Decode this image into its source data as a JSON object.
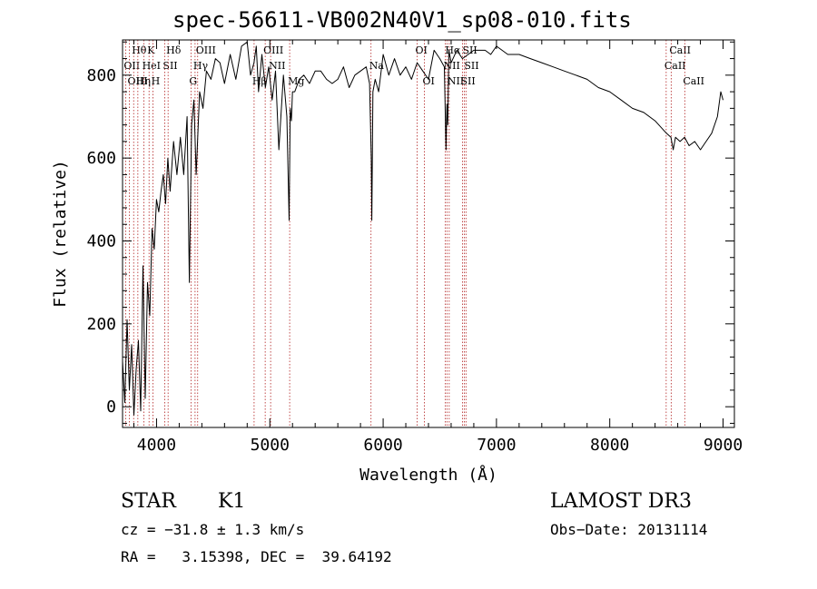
{
  "chart_data": {
    "type": "line",
    "title": "spec-56611-VB002N40V1_sp08-010.fits",
    "xlabel": "Wavelength (Å)",
    "ylabel": "Flux (relative)",
    "xlim": [
      3700,
      9100
    ],
    "ylim": [
      -50,
      885
    ],
    "xticks": [
      "4000",
      "5000",
      "6000",
      "7000",
      "8000",
      "9000"
    ],
    "xtick_values": [
      4000,
      5000,
      6000,
      7000,
      8000,
      9000
    ],
    "yticks": [
      "0",
      "200",
      "400",
      "600",
      "800"
    ],
    "ytick_values": [
      0,
      200,
      400,
      600,
      800
    ],
    "series": [
      {
        "name": "flux",
        "x": [
          3700,
          3720,
          3740,
          3760,
          3780,
          3800,
          3820,
          3840,
          3860,
          3880,
          3900,
          3920,
          3940,
          3960,
          3980,
          4000,
          4020,
          4040,
          4060,
          4080,
          4100,
          4120,
          4150,
          4180,
          4210,
          4240,
          4270,
          4290,
          4310,
          4330,
          4350,
          4380,
          4410,
          4440,
          4480,
          4520,
          4560,
          4600,
          4650,
          4700,
          4750,
          4800,
          4830,
          4860,
          4880,
          4900,
          4930,
          4960,
          4990,
          5020,
          5050,
          5080,
          5120,
          5150,
          5170,
          5180,
          5190,
          5200,
          5220,
          5260,
          5300,
          5350,
          5400,
          5450,
          5500,
          5550,
          5600,
          5650,
          5700,
          5750,
          5800,
          5850,
          5880,
          5895,
          5900,
          5910,
          5930,
          5960,
          6000,
          6050,
          6100,
          6150,
          6200,
          6250,
          6300,
          6350,
          6400,
          6450,
          6500,
          6540,
          6555,
          6563,
          6570,
          6580,
          6600,
          6650,
          6700,
          6750,
          6800,
          6850,
          6900,
          6950,
          7000,
          7050,
          7100,
          7200,
          7300,
          7400,
          7500,
          7600,
          7700,
          7800,
          7900,
          8000,
          8100,
          8200,
          8300,
          8400,
          8500,
          8540,
          8560,
          8580,
          8620,
          8660,
          8700,
          8750,
          8800,
          8850,
          8900,
          8950,
          8980,
          9000
        ],
        "values": [
          110,
          10,
          210,
          40,
          150,
          -20,
          90,
          160,
          -10,
          340,
          20,
          300,
          220,
          430,
          380,
          500,
          470,
          520,
          560,
          490,
          600,
          520,
          640,
          560,
          650,
          560,
          700,
          300,
          680,
          740,
          560,
          760,
          720,
          810,
          790,
          840,
          830,
          780,
          850,
          790,
          870,
          880,
          800,
          830,
          870,
          760,
          850,
          770,
          820,
          740,
          810,
          620,
          800,
          700,
          450,
          720,
          690,
          760,
          760,
          790,
          800,
          780,
          810,
          810,
          790,
          780,
          790,
          820,
          770,
          800,
          810,
          820,
          780,
          600,
          450,
          760,
          790,
          760,
          850,
          800,
          840,
          800,
          820,
          790,
          830,
          810,
          790,
          860,
          840,
          820,
          620,
          730,
          680,
          860,
          830,
          860,
          840,
          850,
          860,
          860,
          860,
          850,
          870,
          860,
          850,
          850,
          840,
          830,
          820,
          810,
          800,
          790,
          770,
          760,
          740,
          720,
          710,
          690,
          660,
          650,
          620,
          650,
          640,
          650,
          630,
          640,
          620,
          640,
          660,
          700,
          760,
          740
        ]
      }
    ],
    "line_markers": [
      {
        "label": "Hθ",
        "x": 3798,
        "row": 1
      },
      {
        "label": "OII",
        "x": 3727,
        "row": 2
      },
      {
        "label": "OIII",
        "x": 3760,
        "row": 3
      },
      {
        "label": "K",
        "x": 3934,
        "row": 1
      },
      {
        "label": "HeI",
        "x": 3889,
        "row": 2
      },
      {
        "label": "Hη",
        "x": 3835,
        "row": 3
      },
      {
        "label": "H",
        "x": 3969,
        "row": 3
      },
      {
        "label": "SII",
        "x": 4072,
        "row": 2
      },
      {
        "label": "Hδ",
        "x": 4102,
        "row": 1
      },
      {
        "label": "OIII",
        "x": 4363,
        "row": 1
      },
      {
        "label": "Hγ",
        "x": 4340,
        "row": 2
      },
      {
        "label": "G",
        "x": 4304,
        "row": 3
      },
      {
        "label": "Hβ",
        "x": 4861,
        "row": 3
      },
      {
        "label": "OIII",
        "x": 4959,
        "row": 1
      },
      {
        "label": "NII",
        "x": 5007,
        "row": 2
      },
      {
        "label": "Mg",
        "x": 5175,
        "row": 3
      },
      {
        "label": "Na",
        "x": 5893,
        "row": 2
      },
      {
        "label": "OI",
        "x": 6300,
        "row": 1
      },
      {
        "label": "OI",
        "x": 6364,
        "row": 3
      },
      {
        "label": "Hα",
        "x": 6563,
        "row": 1
      },
      {
        "label": "SII",
        "x": 6716,
        "row": 1
      },
      {
        "label": "NII",
        "x": 6548,
        "row": 2
      },
      {
        "label": "SII",
        "x": 6731,
        "row": 2
      },
      {
        "label": "NII",
        "x": 6583,
        "row": 3
      },
      {
        "label": "SII",
        "x": 6700,
        "row": 3
      },
      {
        "label": "CaII",
        "x": 8542,
        "row": 1
      },
      {
        "label": "CaII",
        "x": 8498,
        "row": 2
      },
      {
        "label": "CaII",
        "x": 8662,
        "row": 3
      }
    ]
  },
  "info": {
    "class": "STAR",
    "subclass": "K1",
    "survey": "LAMOST DR3",
    "cz": "cz = −31.8 ± 1.3 km/s",
    "obs_date": "Obs−Date: 20131114",
    "coords": "RA =   3.15398, DEC =  39.64192"
  },
  "colors": {
    "line": "#000000",
    "marker": "#b22222",
    "axes": "#000000"
  }
}
